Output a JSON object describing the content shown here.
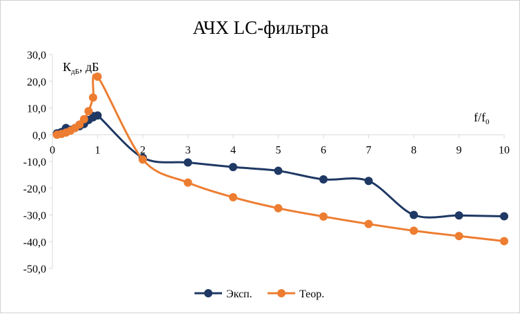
{
  "chart_data": {
    "type": "line",
    "title": "АЧХ LC-фильтра",
    "ylabel_main": "К",
    "ylabel_sub": "дБ",
    "ylabel_rest": ", дБ",
    "xlabel_main": "f/f",
    "xlabel_sub": "0",
    "xlim": [
      0,
      10
    ],
    "ylim": [
      -50,
      30
    ],
    "x_ticks": [
      0,
      1,
      2,
      3,
      4,
      5,
      6,
      7,
      8,
      9,
      10
    ],
    "y_ticks": [
      30,
      20,
      10,
      0,
      -10,
      -20,
      -30,
      -40,
      -50
    ],
    "y_tick_labels": [
      "30,0",
      "20,0",
      "10,0",
      "0,0",
      "-10,0",
      "-20,0",
      "-30,0",
      "-40,0",
      "-50,0"
    ],
    "legend_position": "bottom",
    "series": [
      {
        "name": "Эксп.",
        "color": "#1f3864",
        "x": [
          0.1,
          0.2,
          0.3,
          0.4,
          0.5,
          0.6,
          0.7,
          0.8,
          0.9,
          1.0,
          2,
          3,
          4,
          5,
          6,
          7,
          8,
          9,
          10
        ],
        "y": [
          0.5,
          1.0,
          2.5,
          1.8,
          2.5,
          3.2,
          4.0,
          5.5,
          6.5,
          7.2,
          -8.6,
          -10.4,
          -12.1,
          -13.5,
          -16.7,
          -17.3,
          -30.0,
          -30.2,
          -30.5
        ]
      },
      {
        "name": "Теор.",
        "color": "#ed7d31",
        "x": [
          0.1,
          0.2,
          0.3,
          0.4,
          0.5,
          0.6,
          0.7,
          0.8,
          0.9,
          1.0,
          2,
          3,
          4,
          5,
          6,
          7,
          8,
          9,
          10
        ],
        "y": [
          0.0,
          0.3,
          0.8,
          1.5,
          2.5,
          3.8,
          5.8,
          8.8,
          13.9,
          21.7,
          -9.3,
          -17.9,
          -23.4,
          -27.5,
          -30.6,
          -33.4,
          -35.9,
          -37.9,
          -39.8
        ]
      }
    ]
  }
}
